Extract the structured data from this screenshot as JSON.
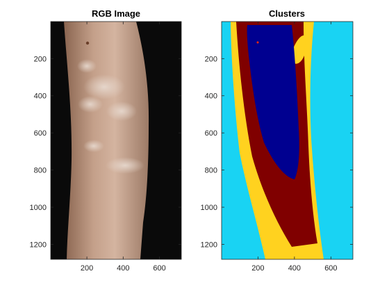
{
  "chart_data": [
    {
      "type": "image",
      "title": "RGB Image",
      "xlim": [
        0.5,
        720.5
      ],
      "ylim": [
        0.5,
        1280.5
      ],
      "y_reversed": true,
      "xticks": [
        200,
        400,
        600
      ],
      "yticks": [
        200,
        400,
        600,
        800,
        1000,
        1200
      ],
      "content": "photograph of a forearm with lighter skin patches on a black background"
    },
    {
      "type": "heatmap",
      "title": "Clusters",
      "xlim": [
        0.5,
        720.5
      ],
      "ylim": [
        0.5,
        1280.5
      ],
      "y_reversed": true,
      "xticks": [
        200,
        400,
        600
      ],
      "yticks": [
        200,
        400,
        600,
        800,
        1000,
        1200
      ],
      "cluster_colors": {
        "background": "#19d3f3",
        "edge": "#ffd21f",
        "skin": "#800000",
        "patch": "#000090"
      }
    }
  ]
}
